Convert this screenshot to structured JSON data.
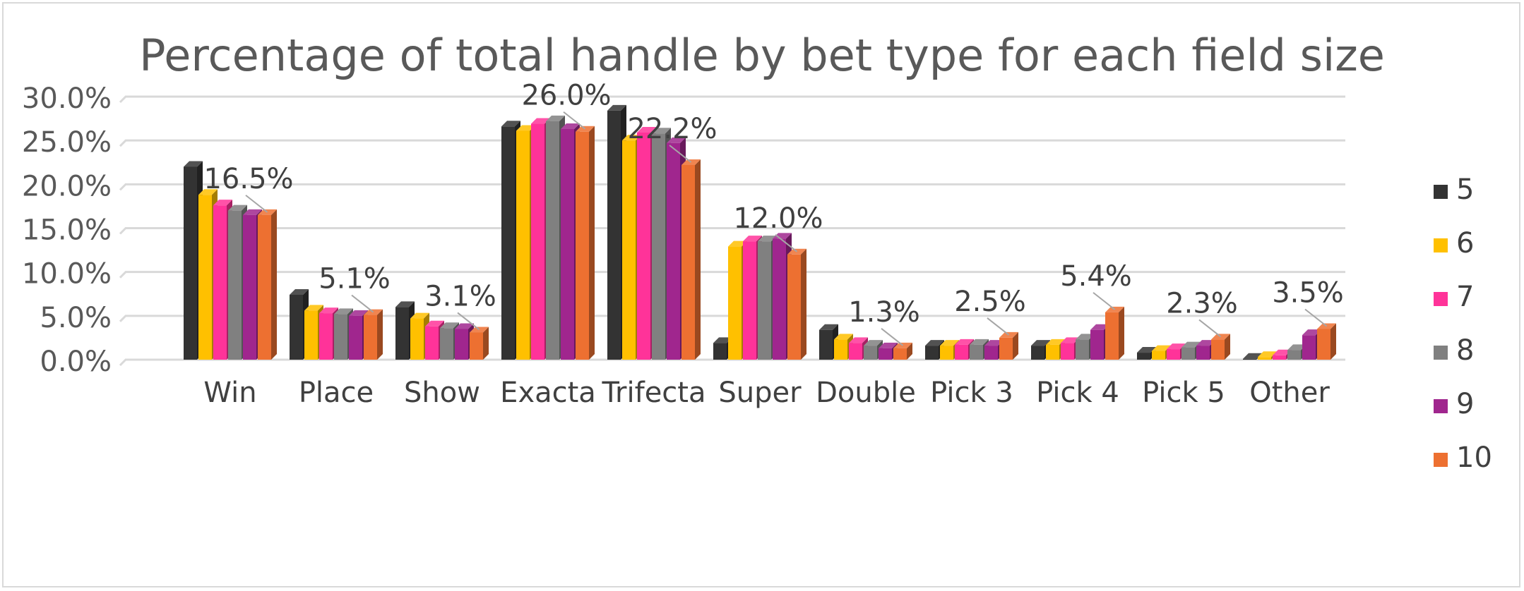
{
  "chart_data": {
    "type": "bar",
    "title": "Percentage of total handle by bet type for each field size",
    "xlabel": "",
    "ylabel": "",
    "ylim": [
      0,
      30
    ],
    "yticks": [
      "0.0%",
      "5.0%",
      "10.0%",
      "15.0%",
      "20.0%",
      "25.0%",
      "30.0%"
    ],
    "grid": true,
    "three_d": true,
    "legend_position": "right",
    "categories": [
      "Win",
      "Place",
      "Show",
      "Exacta",
      "Trifecta",
      "Super",
      "Double",
      "Pick 3",
      "Pick 4",
      "Pick 5",
      "Other"
    ],
    "series": [
      {
        "name": "5",
        "color": "#333333",
        "values": [
          22.0,
          7.4,
          6.0,
          26.6,
          28.4,
          1.9,
          3.4,
          1.6,
          1.6,
          0.8,
          0.1
        ]
      },
      {
        "name": "6",
        "color": "#ffc000",
        "values": [
          18.8,
          5.6,
          4.7,
          26.1,
          25.0,
          12.9,
          2.3,
          1.6,
          1.7,
          1.0,
          0.3
        ]
      },
      {
        "name": "7",
        "color": "#ff3399",
        "values": [
          17.6,
          5.3,
          3.8,
          26.9,
          25.9,
          13.5,
          1.9,
          1.7,
          1.9,
          1.2,
          0.5
        ]
      },
      {
        "name": "8",
        "color": "#808080",
        "values": [
          17.0,
          5.2,
          3.6,
          27.2,
          25.8,
          13.5,
          1.6,
          1.7,
          2.3,
          1.4,
          1.1
        ]
      },
      {
        "name": "9",
        "color": "#a0268e",
        "values": [
          16.5,
          5.0,
          3.5,
          26.3,
          24.7,
          13.8,
          1.3,
          1.6,
          3.4,
          1.6,
          2.8
        ]
      },
      {
        "name": "10",
        "color": "#ed7031",
        "values": [
          16.5,
          5.1,
          3.1,
          26.0,
          22.2,
          12.0,
          1.3,
          2.5,
          5.4,
          2.3,
          3.5
        ]
      }
    ],
    "data_labels": [
      {
        "category": "Win",
        "series": "10",
        "text": "16.5%"
      },
      {
        "category": "Place",
        "series": "10",
        "text": "5.1%"
      },
      {
        "category": "Show",
        "series": "10",
        "text": "3.1%"
      },
      {
        "category": "Exacta",
        "series": "10",
        "text": "26.0%"
      },
      {
        "category": "Trifecta",
        "series": "10",
        "text": "22.2%"
      },
      {
        "category": "Super",
        "series": "10",
        "text": "12.0%"
      },
      {
        "category": "Double",
        "series": "10",
        "text": "1.3%"
      },
      {
        "category": "Pick 3",
        "series": "10",
        "text": "2.5%"
      },
      {
        "category": "Pick 4",
        "series": "10",
        "text": "5.4%"
      },
      {
        "category": "Pick 5",
        "series": "10",
        "text": "2.3%"
      },
      {
        "category": "Other",
        "series": "10",
        "text": "3.5%"
      }
    ],
    "colors": {
      "grid": "#d9d9d9",
      "text": "#595959",
      "leader": "#a6a6a6"
    }
  }
}
